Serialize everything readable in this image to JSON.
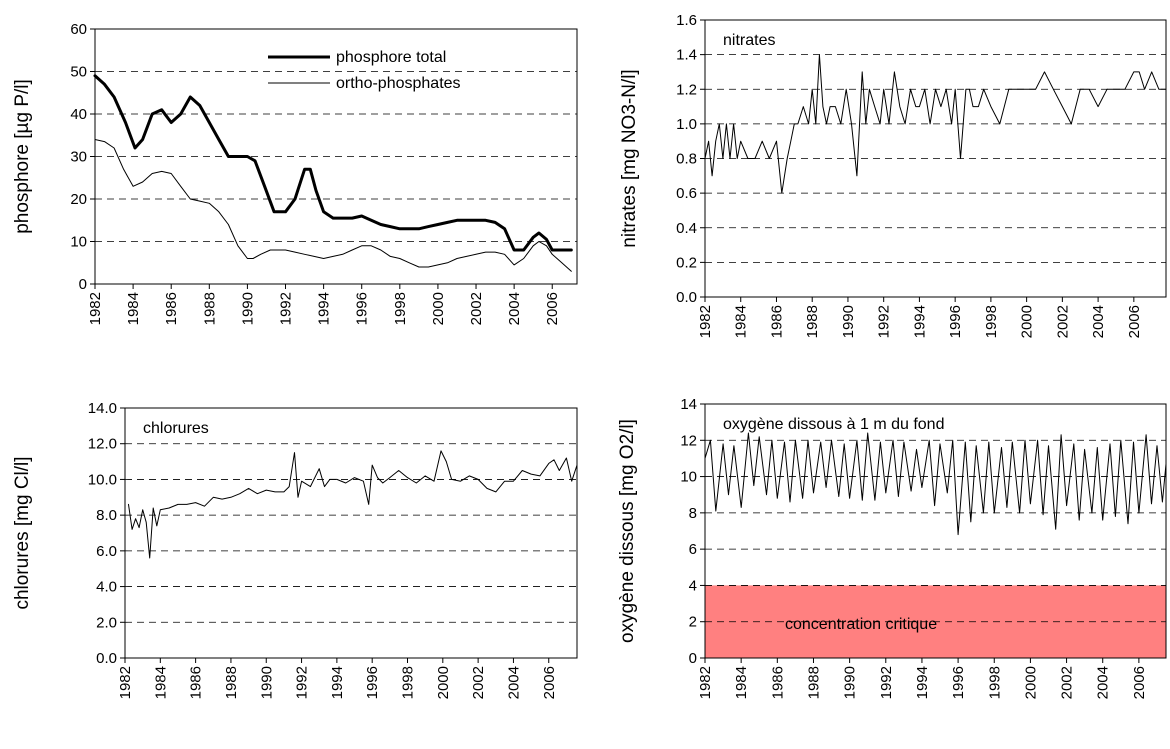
{
  "chart_data": [
    {
      "id": "phosphore",
      "type": "line",
      "ylabel": "phosphore [µg P/l]",
      "inner_label": "",
      "xlim": [
        1982,
        2007.3
      ],
      "ylim": [
        0,
        60
      ],
      "yticks": [
        0,
        10,
        20,
        30,
        40,
        50,
        60
      ],
      "ytick_labels": [
        "0",
        "10",
        "20",
        "30",
        "40",
        "50",
        "60"
      ],
      "xticks": [
        1982,
        1984,
        1986,
        1988,
        1990,
        1992,
        1994,
        1996,
        1998,
        2000,
        2002,
        2004,
        2006
      ],
      "xtick_labels": [
        "1982",
        "1984",
        "1986",
        "1988",
        "1990",
        "1992",
        "1994",
        "1996",
        "1998",
        "2000",
        "2002",
        "2004",
        "2006"
      ],
      "grid": "horizontal dashed",
      "legend": "top-center",
      "series": [
        {
          "name": "phosphore total",
          "style": "thick",
          "x": [
            1982,
            1982.5,
            1983,
            1983.6,
            1984.1,
            1984.5,
            1985,
            1985.5,
            1986,
            1986.5,
            1987,
            1987.5,
            1988,
            1988.5,
            1989,
            1989.5,
            1990,
            1990.4,
            1990.9,
            1991.4,
            1992,
            1992.5,
            1993,
            1993.3,
            1993.6,
            1994,
            1994.5,
            1995,
            1995.5,
            1996,
            1996.5,
            1997,
            1997.5,
            1998,
            1998.5,
            1999,
            1999.5,
            2000,
            2000.5,
            2001,
            2001.5,
            2002,
            2002.5,
            2003,
            2003.5,
            2004,
            2004.5,
            2005,
            2005.3,
            2005.7,
            2006,
            2006.5,
            2007
          ],
          "values": [
            49,
            47,
            44,
            38,
            32,
            34,
            40,
            41,
            38,
            40,
            44,
            42,
            38,
            34,
            30,
            30,
            30,
            29,
            23,
            17,
            17,
            20,
            27,
            27,
            22,
            17,
            15.5,
            15.5,
            15.5,
            16,
            15,
            14,
            13.5,
            13,
            13,
            13,
            13.5,
            14,
            14.5,
            15,
            15,
            15,
            15,
            14.5,
            13,
            8,
            8,
            11,
            12,
            10.5,
            8,
            8,
            8
          ]
        },
        {
          "name": "ortho-phosphates",
          "style": "thin",
          "x": [
            1982,
            1982.5,
            1983,
            1983.5,
            1984,
            1984.5,
            1985,
            1985.5,
            1986,
            1986.5,
            1987,
            1987.5,
            1988,
            1988.5,
            1989,
            1989.5,
            1990,
            1990.3,
            1990.7,
            1991.2,
            1992,
            1992.5,
            1993,
            1993.5,
            1994,
            1994.5,
            1995,
            1995.5,
            1996,
            1996.5,
            1997,
            1997.5,
            1998,
            1998.5,
            1999,
            1999.5,
            2000,
            2000.5,
            2001,
            2001.5,
            2002,
            2002.5,
            2003,
            2003.5,
            2004,
            2004.5,
            2005,
            2005.3,
            2005.7,
            2006,
            2006.5,
            2007
          ],
          "values": [
            34,
            33.5,
            32,
            27,
            23,
            24,
            26,
            26.5,
            26,
            23,
            20,
            19.5,
            19,
            17,
            14,
            9,
            6,
            6,
            7,
            8,
            8,
            7.5,
            7,
            6.5,
            6,
            6.5,
            7,
            8,
            9,
            9,
            8,
            6.5,
            6,
            5,
            4,
            4,
            4.5,
            5,
            6,
            6.5,
            7,
            7.5,
            7.5,
            7,
            4.5,
            6,
            9,
            10,
            9,
            7,
            5,
            3
          ]
        }
      ]
    },
    {
      "id": "nitrates",
      "type": "line",
      "ylabel": "nitrates [mg NO3-N/l]",
      "inner_label": "nitrates",
      "xlim": [
        1982,
        2007.8
      ],
      "ylim": [
        0,
        1.6
      ],
      "yticks": [
        0,
        0.2,
        0.4,
        0.6,
        0.8,
        1.0,
        1.2,
        1.4,
        1.6
      ],
      "ytick_labels": [
        "0.0",
        "0.2",
        "0.4",
        "0.6",
        "0.8",
        "1.0",
        "1.2",
        "1.4",
        "1.6"
      ],
      "xticks": [
        1982,
        1984,
        1986,
        1988,
        1990,
        1992,
        1994,
        1996,
        1998,
        2000,
        2002,
        2004,
        2006
      ],
      "xtick_labels": [
        "1982",
        "1984",
        "1986",
        "1988",
        "1990",
        "1992",
        "1994",
        "1996",
        "1998",
        "2000",
        "2002",
        "2004",
        "2006"
      ],
      "grid": "horizontal dashed",
      "series": [
        {
          "name": "",
          "style": "thin",
          "x": [
            1982,
            1982.2,
            1982.4,
            1982.6,
            1982.8,
            1983,
            1983.2,
            1983.4,
            1983.6,
            1983.8,
            1984,
            1984.4,
            1984.8,
            1985.2,
            1985.6,
            1986,
            1986.3,
            1986.6,
            1986.8,
            1987,
            1987.2,
            1987.5,
            1987.8,
            1988,
            1988.2,
            1988.4,
            1988.6,
            1988.8,
            1989,
            1989.3,
            1989.6,
            1989.9,
            1990.2,
            1990.5,
            1990.8,
            1991,
            1991.2,
            1991.5,
            1991.8,
            1992,
            1992.3,
            1992.6,
            1992.9,
            1993.2,
            1993.5,
            1993.8,
            1994,
            1994.3,
            1994.6,
            1994.9,
            1995.2,
            1995.5,
            1995.8,
            1996,
            1996.3,
            1996.6,
            1996.8,
            1997,
            1997.3,
            1997.6,
            1998,
            1998.5,
            1999,
            1999.5,
            2000,
            2000.5,
            2001,
            2001.5,
            2002,
            2002.5,
            2003,
            2003.5,
            2004,
            2004.5,
            2005,
            2005.5,
            2006,
            2006.3,
            2006.6,
            2007,
            2007.4,
            2007.8
          ],
          "values": [
            0.8,
            0.9,
            0.7,
            0.9,
            1.0,
            0.8,
            1.0,
            0.8,
            1.0,
            0.8,
            0.9,
            0.8,
            0.8,
            0.9,
            0.8,
            0.9,
            0.6,
            0.8,
            0.9,
            1.0,
            1.0,
            1.1,
            1.0,
            1.2,
            1.0,
            1.4,
            1.1,
            1.0,
            1.1,
            1.1,
            1.0,
            1.2,
            1.0,
            0.7,
            1.3,
            1.0,
            1.2,
            1.1,
            1.0,
            1.2,
            1.0,
            1.3,
            1.1,
            1.0,
            1.2,
            1.1,
            1.1,
            1.2,
            1.0,
            1.2,
            1.1,
            1.2,
            1.0,
            1.2,
            0.8,
            1.2,
            1.2,
            1.1,
            1.1,
            1.2,
            1.1,
            1.0,
            1.2,
            1.2,
            1.2,
            1.2,
            1.3,
            1.2,
            1.1,
            1.0,
            1.2,
            1.2,
            1.1,
            1.2,
            1.2,
            1.2,
            1.3,
            1.3,
            1.2,
            1.3,
            1.2,
            1.2
          ]
        }
      ]
    },
    {
      "id": "chlorures",
      "type": "line",
      "ylabel": "chlorures [mg Cl/l]",
      "inner_label": "chlorures",
      "xlim": [
        1982,
        2007.6
      ],
      "ylim": [
        0,
        14
      ],
      "yticks": [
        0,
        2,
        4,
        6,
        8,
        10,
        12,
        14
      ],
      "ytick_labels": [
        "0.0",
        "2.0",
        "4.0",
        "6.0",
        "8.0",
        "10.0",
        "12.0",
        "14.0"
      ],
      "xticks": [
        1982,
        1984,
        1986,
        1988,
        1990,
        1992,
        1994,
        1996,
        1998,
        2000,
        2002,
        2004,
        2006
      ],
      "xtick_labels": [
        "1982",
        "1984",
        "1986",
        "1988",
        "1990",
        "1992",
        "1994",
        "1996",
        "1998",
        "2000",
        "2002",
        "2004",
        "2006"
      ],
      "grid": "horizontal dashed",
      "series": [
        {
          "name": "",
          "style": "thin",
          "x": [
            1982.2,
            1982.4,
            1982.6,
            1982.8,
            1983,
            1983.2,
            1983.4,
            1983.6,
            1983.8,
            1984,
            1984.5,
            1985,
            1985.5,
            1986,
            1986.5,
            1987,
            1987.5,
            1988,
            1988.5,
            1989,
            1989.5,
            1990,
            1990.5,
            1991,
            1991.3,
            1991.6,
            1991.8,
            1992,
            1992.5,
            1993,
            1993.3,
            1993.6,
            1994,
            1994.5,
            1995,
            1995.5,
            1995.8,
            1996,
            1996.3,
            1996.6,
            1997,
            1997.5,
            1998,
            1998.5,
            1999,
            1999.5,
            1999.9,
            2000.2,
            2000.5,
            2001,
            2001.5,
            2002,
            2002.5,
            2003,
            2003.5,
            2004,
            2004.5,
            2005,
            2005.5,
            2006,
            2006.3,
            2006.6,
            2007,
            2007.3,
            2007.6
          ],
          "values": [
            8.6,
            7.2,
            7.8,
            7.3,
            8.3,
            7.6,
            5.6,
            8.4,
            7.4,
            8.3,
            8.4,
            8.6,
            8.6,
            8.7,
            8.5,
            9.0,
            8.9,
            9.0,
            9.2,
            9.5,
            9.2,
            9.4,
            9.3,
            9.3,
            9.6,
            11.5,
            9.0,
            9.9,
            9.6,
            10.6,
            9.6,
            10.0,
            10.0,
            9.8,
            10.1,
            9.9,
            8.6,
            10.8,
            10.1,
            9.8,
            10.1,
            10.5,
            10.1,
            9.8,
            10.2,
            9.9,
            11.6,
            11.0,
            10.0,
            9.9,
            10.2,
            10.0,
            9.5,
            9.3,
            9.9,
            9.9,
            10.5,
            10.3,
            10.2,
            10.9,
            11.1,
            10.5,
            11.2,
            9.9,
            10.8
          ]
        }
      ]
    },
    {
      "id": "oxygene",
      "type": "line",
      "ylabel": "oxygène dissous [mg O2/l]",
      "inner_label": "oxygène dissous à 1 m du fond",
      "band_label": "concentration critique",
      "band_range": [
        0,
        4
      ],
      "band_color": "#ff8080",
      "xlim": [
        1982,
        2007.5
      ],
      "ylim": [
        0,
        14
      ],
      "yticks": [
        0,
        2,
        4,
        6,
        8,
        10,
        12,
        14
      ],
      "ytick_labels": [
        "0",
        "2",
        "4",
        "6",
        "8",
        "10",
        "12",
        "14"
      ],
      "xticks": [
        1982,
        1984,
        1986,
        1988,
        1990,
        1992,
        1994,
        1996,
        1998,
        2000,
        2002,
        2004,
        2006
      ],
      "xtick_labels": [
        "1982",
        "1984",
        "1986",
        "1988",
        "1990",
        "1992",
        "1994",
        "1996",
        "1998",
        "2000",
        "2002",
        "2004",
        "2006"
      ],
      "grid": "horizontal dashed",
      "series": [
        {
          "name": "",
          "style": "thin",
          "x": [
            1982,
            1982.3,
            1982.6,
            1983,
            1983.3,
            1983.6,
            1984,
            1984.4,
            1984.7,
            1985,
            1985.4,
            1985.7,
            1986,
            1986.4,
            1986.7,
            1987,
            1987.4,
            1987.7,
            1988,
            1988.4,
            1988.7,
            1989,
            1989.4,
            1989.7,
            1990,
            1990.4,
            1990.7,
            1991,
            1991.4,
            1991.7,
            1992,
            1992.4,
            1992.7,
            1993,
            1993.4,
            1993.7,
            1994,
            1994.4,
            1994.7,
            1995,
            1995.4,
            1995.7,
            1996,
            1996.4,
            1996.7,
            1997,
            1997.4,
            1997.7,
            1998,
            1998.4,
            1998.7,
            1999,
            1999.4,
            1999.7,
            2000,
            2000.4,
            2000.7,
            2001,
            2001.4,
            2001.7,
            2002,
            2002.4,
            2002.7,
            2003,
            2003.4,
            2003.7,
            2004,
            2004.4,
            2004.7,
            2005,
            2005.4,
            2005.7,
            2006,
            2006.4,
            2006.7,
            2007,
            2007.3,
            2007.5
          ],
          "values": [
            11.0,
            12.0,
            8.1,
            11.8,
            9.0,
            11.7,
            8.3,
            12.4,
            9.5,
            12.2,
            9.0,
            12.0,
            8.8,
            11.9,
            8.6,
            12.0,
            8.8,
            12.0,
            9.1,
            11.9,
            9.4,
            12.0,
            8.9,
            11.8,
            8.8,
            12.0,
            8.7,
            12.4,
            8.7,
            11.9,
            9.1,
            12.0,
            8.9,
            11.9,
            9.2,
            11.5,
            9.4,
            12.0,
            8.4,
            11.8,
            9.1,
            12.0,
            6.8,
            11.9,
            7.5,
            11.7,
            8.0,
            11.9,
            8.0,
            11.6,
            8.3,
            11.9,
            8.0,
            12.0,
            8.5,
            12.0,
            7.9,
            11.7,
            7.1,
            12.3,
            8.4,
            11.8,
            7.6,
            11.5,
            8.0,
            11.6,
            7.6,
            11.8,
            7.8,
            12.0,
            7.4,
            11.9,
            8.0,
            12.3,
            8.5,
            11.7,
            8.6,
            10.7
          ]
        }
      ]
    }
  ]
}
